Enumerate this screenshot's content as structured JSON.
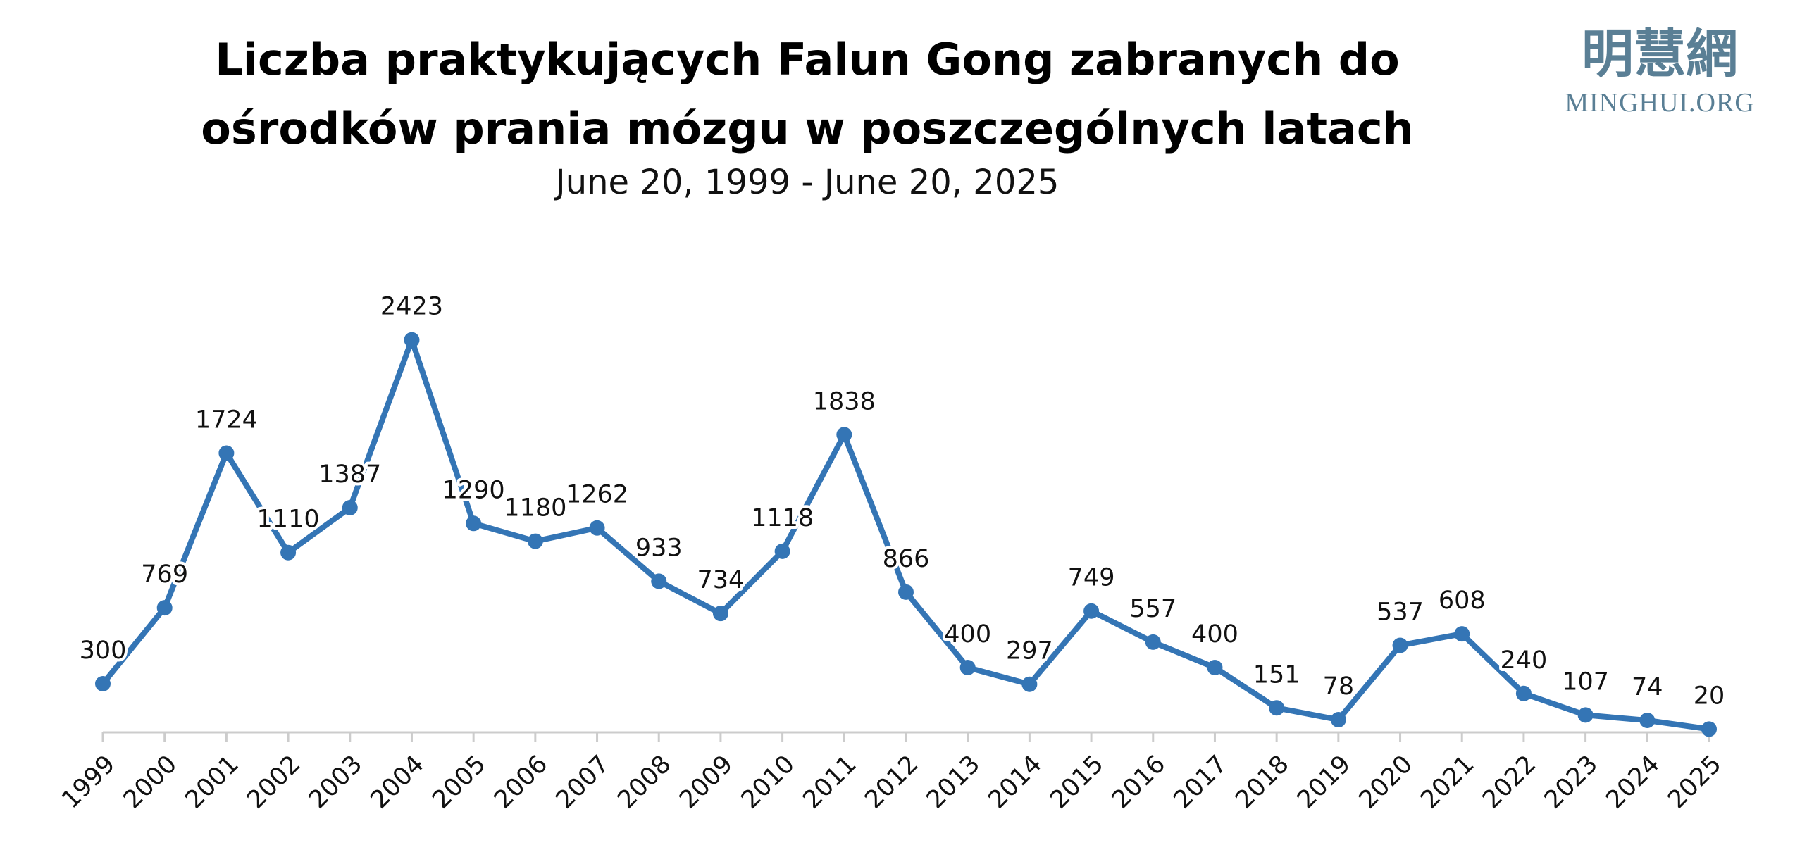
{
  "chart_data": {
    "type": "line",
    "title": "Liczba praktykujących Falun Gong zabranych do ośrodków prania mózgu w poszczególnych latach",
    "subtitle": "June 20, 1999 - June 20, 2025",
    "logo": {
      "chinese": "明慧網",
      "latin": "MINGHUI.ORG"
    },
    "categories": [
      "1999",
      "2000",
      "2001",
      "2002",
      "2003",
      "2004",
      "2005",
      "2006",
      "2007",
      "2008",
      "2009",
      "2010",
      "2011",
      "2012",
      "2013",
      "2014",
      "2015",
      "2016",
      "2017",
      "2018",
      "2019",
      "2020",
      "2021",
      "2022",
      "2023",
      "2024",
      "2025"
    ],
    "series": [
      {
        "name": "Liczba praktykujących",
        "color": "#3475b5",
        "values": [
          300,
          769,
          1724,
          1110,
          1387,
          2423,
          1290,
          1180,
          1262,
          933,
          734,
          1118,
          1838,
          866,
          400,
          297,
          749,
          557,
          400,
          151,
          78,
          537,
          608,
          240,
          107,
          74,
          20
        ]
      }
    ],
    "ylim": [
      0,
      2500
    ]
  }
}
